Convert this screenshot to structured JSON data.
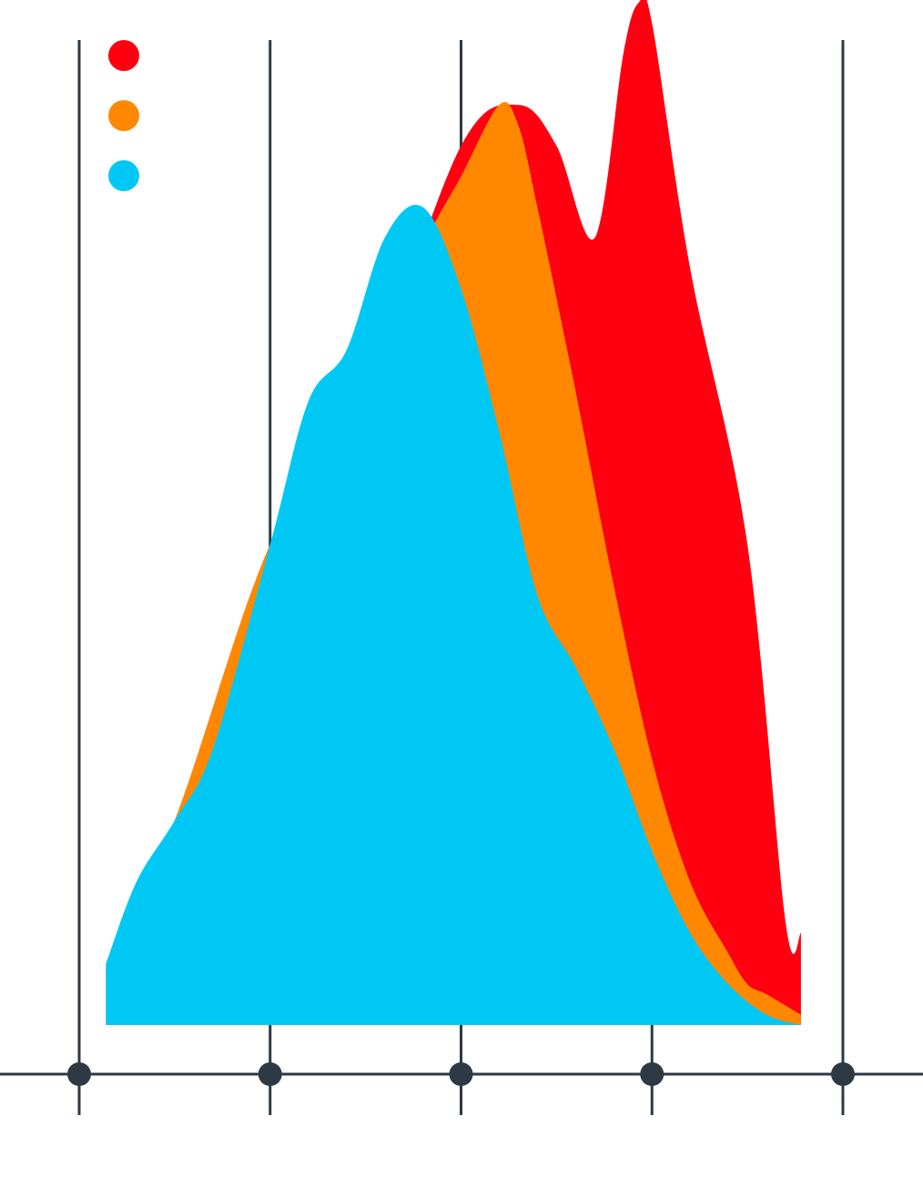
{
  "colors": {
    "series_a": "#ff0010",
    "series_b": "#ff8800",
    "series_c": "#00c8f5",
    "axis": "#2d3a44",
    "background": "#ffffff"
  },
  "chart_data": {
    "type": "area",
    "title": "",
    "xlabel": "",
    "ylabel": "",
    "xlim": [
      0,
      4
    ],
    "ylim": [
      0,
      1
    ],
    "x_ticks": [
      0,
      1,
      2,
      3,
      4
    ],
    "x_tick_labels": [
      "",
      "",
      "",
      "",
      ""
    ],
    "grid": "vertical",
    "legend": {
      "position": "top-left",
      "entries": [
        {
          "color_key": "series_a",
          "label": ""
        },
        {
          "color_key": "series_b",
          "label": ""
        },
        {
          "color_key": "series_c",
          "label": ""
        }
      ]
    },
    "series": [
      {
        "color_key": "series_a",
        "x": [
          0.14,
          0.5,
          1.0,
          1.5,
          2.0,
          2.3,
          2.5,
          2.7,
          2.85,
          2.93,
          3.0,
          3.2,
          3.5,
          3.7,
          3.78
        ],
        "y": [
          0.06,
          0.2,
          0.47,
          0.62,
          0.86,
          0.9,
          0.86,
          0.77,
          0.95,
          1.0,
          0.98,
          0.74,
          0.47,
          0.1,
          0.09
        ]
      },
      {
        "color_key": "series_b",
        "x": [
          0.14,
          0.5,
          1.0,
          1.5,
          1.8,
          2.0,
          2.2,
          2.3,
          2.4,
          2.6,
          2.8,
          3.0,
          3.2,
          3.4,
          3.5,
          3.6,
          3.78
        ],
        "y": [
          0.06,
          0.2,
          0.47,
          0.62,
          0.76,
          0.83,
          0.9,
          0.88,
          0.8,
          0.62,
          0.43,
          0.26,
          0.14,
          0.07,
          0.04,
          0.03,
          0.01
        ]
      },
      {
        "color_key": "series_c",
        "x": [
          0.14,
          0.3,
          0.5,
          0.7,
          1.0,
          1.2,
          1.4,
          1.6,
          1.8,
          2.0,
          2.2,
          2.4,
          2.6,
          2.8,
          3.0,
          3.2,
          3.4,
          3.6,
          3.78
        ],
        "y": [
          0.06,
          0.14,
          0.2,
          0.27,
          0.47,
          0.61,
          0.66,
          0.77,
          0.8,
          0.72,
          0.58,
          0.42,
          0.35,
          0.27,
          0.17,
          0.09,
          0.04,
          0.01,
          0.0
        ]
      }
    ]
  }
}
